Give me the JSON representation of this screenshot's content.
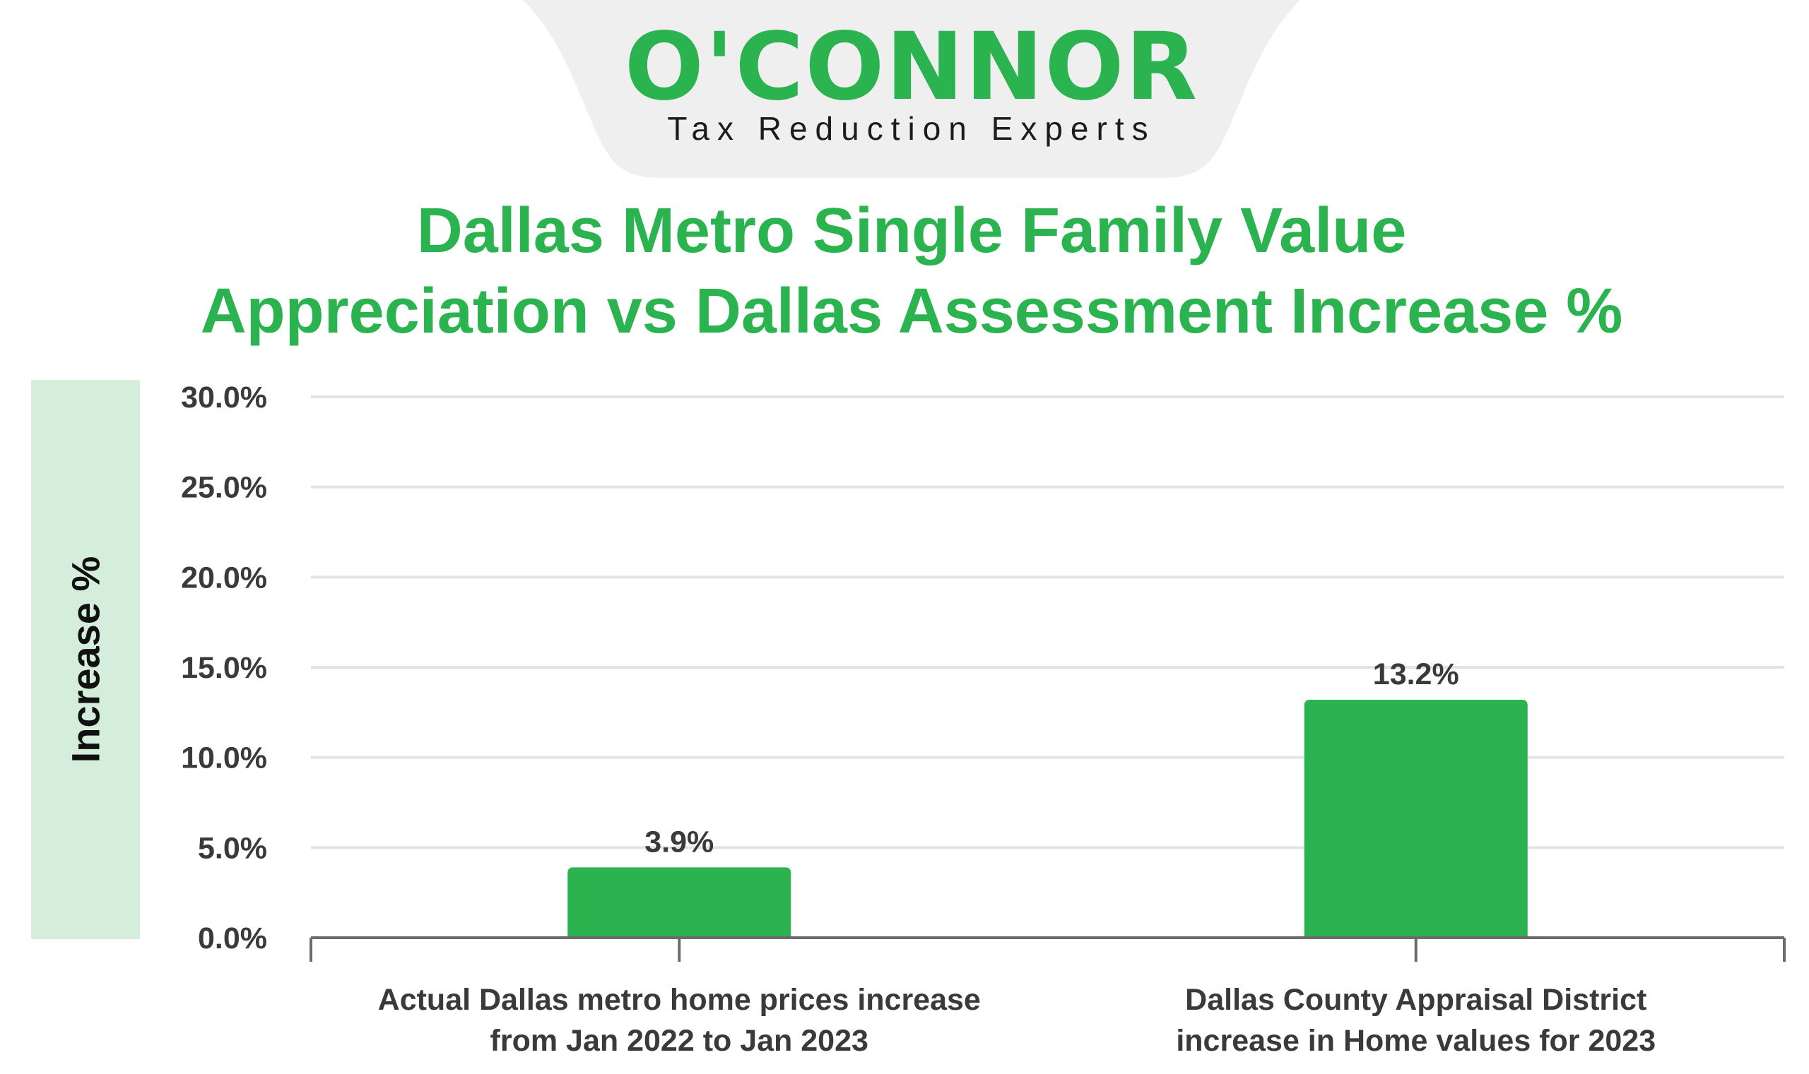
{
  "brand": {
    "logo_text": "O'CONNOR",
    "tagline": "Tax Reduction Experts"
  },
  "colors": {
    "accent": "#2bb34f",
    "band": "#d4eedb",
    "tab_background": "#efefef",
    "grid": "#e3e3e3",
    "axis": "#6b6b6b",
    "text": "#3a3a3a"
  },
  "chart_data": {
    "type": "bar",
    "title": "Dallas Metro Single Family Value Appreciation vs Dallas Assessment Increase %",
    "title_lines": [
      "Dallas Metro Single Family Value",
      "Appreciation vs Dallas Assessment Increase %"
    ],
    "ylabel": "Increase %",
    "xlabel": "",
    "ylim": [
      0,
      30
    ],
    "yticks": [
      0,
      5,
      10,
      15,
      20,
      25,
      30
    ],
    "ytick_labels": [
      "0.0%",
      "5.0%",
      "10.0%",
      "15.0%",
      "20.0%",
      "25.0%",
      "30.0%"
    ],
    "grid": true,
    "legend": "none",
    "categories": [
      "Actual Dallas metro home prices increase from Jan 2022 to Jan 2023",
      "Dallas County Appraisal District increase in Home values for 2023"
    ],
    "category_label_lines": [
      [
        "Actual Dallas metro home prices increase",
        "from Jan 2022 to Jan 2023"
      ],
      [
        "Dallas County Appraisal District",
        "increase in Home values for 2023"
      ]
    ],
    "values": [
      3.9,
      13.2
    ],
    "data_labels": [
      "3.9%",
      "13.2%"
    ],
    "bar_color": "#2bb34f"
  }
}
